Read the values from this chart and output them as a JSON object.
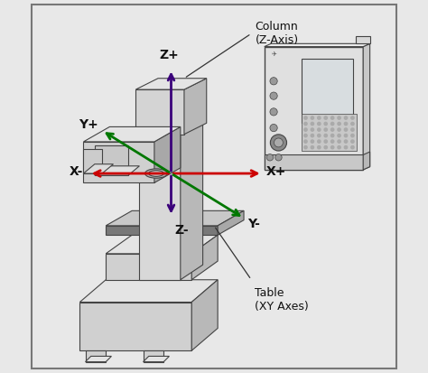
{
  "bg_color": "#e8e8e8",
  "border_color": "#777777",
  "figsize": [
    4.74,
    4.13
  ],
  "dpi": 100,
  "machine_edge": "#444444",
  "z_color": "#3a007a",
  "x_color": "#cc0000",
  "y_color": "#007700",
  "z_plus_label": "Z+",
  "z_minus_label": "Z-",
  "x_plus_label": "X+",
  "x_minus_label": "X-",
  "y_plus_label": "Y+",
  "y_minus_label": "Y-",
  "column_label": "Column\n(Z-Axis)",
  "table_label": "Table\n(XY Axes)",
  "label_fs": 9,
  "axis_label_fs": 10,
  "ox": 0.385,
  "oy": 0.535
}
